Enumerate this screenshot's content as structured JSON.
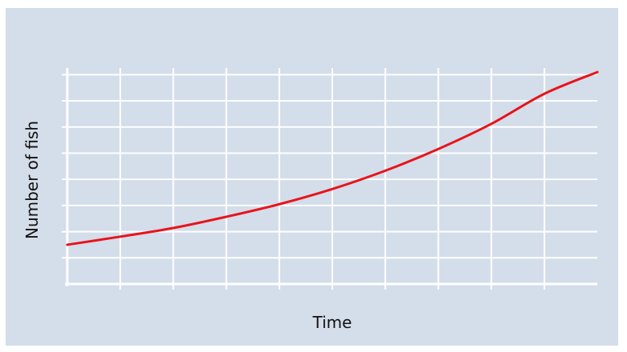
{
  "chart_data": {
    "type": "line",
    "title": "",
    "xlabel": "Time",
    "ylabel": "Number of fish",
    "grid": true,
    "x_ticks_labeled": false,
    "y_ticks_labeled": false,
    "xlim": [
      0,
      10
    ],
    "ylim": [
      0,
      8.5
    ],
    "x_gridlines": [
      1,
      2,
      3,
      4,
      5,
      6,
      7,
      8,
      9
    ],
    "y_gridlines": [
      1,
      2,
      3,
      4,
      5,
      6,
      7,
      8
    ],
    "series": [
      {
        "x": [
          0,
          1,
          2,
          3,
          4,
          5,
          6,
          7,
          8,
          9,
          10
        ],
        "y": [
          1.5,
          1.81,
          2.14,
          2.57,
          3.05,
          3.63,
          4.33,
          5.16,
          6.12,
          7.27,
          8.1
        ]
      }
    ],
    "colors": {
      "background": "#d4ddea",
      "grid": "#ffffff",
      "line": "#e8141b"
    }
  }
}
